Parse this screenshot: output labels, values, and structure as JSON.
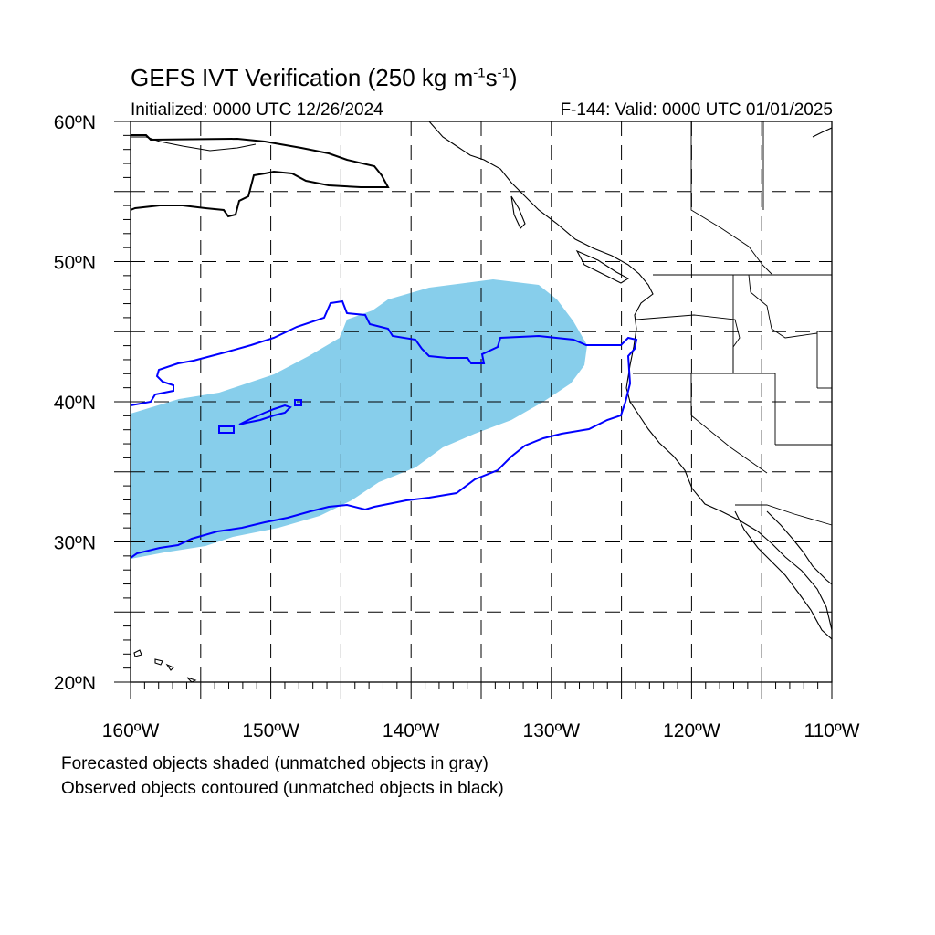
{
  "title": {
    "main": "GEFS IVT Verification (250 kg m",
    "sup1": "-1",
    "mid": "s",
    "sup2": "-1",
    "end": ")"
  },
  "initialized": "Initialized: 0000 UTC 12/26/2024",
  "valid": "F-144: Valid: 0000 UTC 01/01/2025",
  "map": {
    "lon_range": [
      -160,
      -110
    ],
    "lat_range": [
      20,
      60
    ],
    "lon_grid": [
      -155,
      -150,
      -145,
      -140,
      -135,
      -130,
      -125,
      -120,
      -115
    ],
    "lat_grid": [
      25,
      30,
      35,
      40,
      45,
      50,
      55
    ],
    "lat_labels": [
      "20ºN",
      "30ºN",
      "40ºN",
      "50ºN",
      "60ºN"
    ],
    "lat_label_values": [
      20,
      30,
      40,
      50,
      60
    ],
    "lon_labels": [
      "160ºW",
      "150ºW",
      "140ºW",
      "130ºW",
      "120ºW",
      "110ºW"
    ],
    "lon_label_values": [
      -160,
      -150,
      -140,
      -130,
      -120,
      -110
    ],
    "forecast_color": "#87ceeb",
    "matched_observed_color": "#0000ff",
    "unmatched_observed_color": "#000000"
  },
  "legend": {
    "line1": "Forecasted objects shaded (unmatched objects in gray)",
    "line2": "Observed objects contoured (unmatched objects in black)"
  }
}
